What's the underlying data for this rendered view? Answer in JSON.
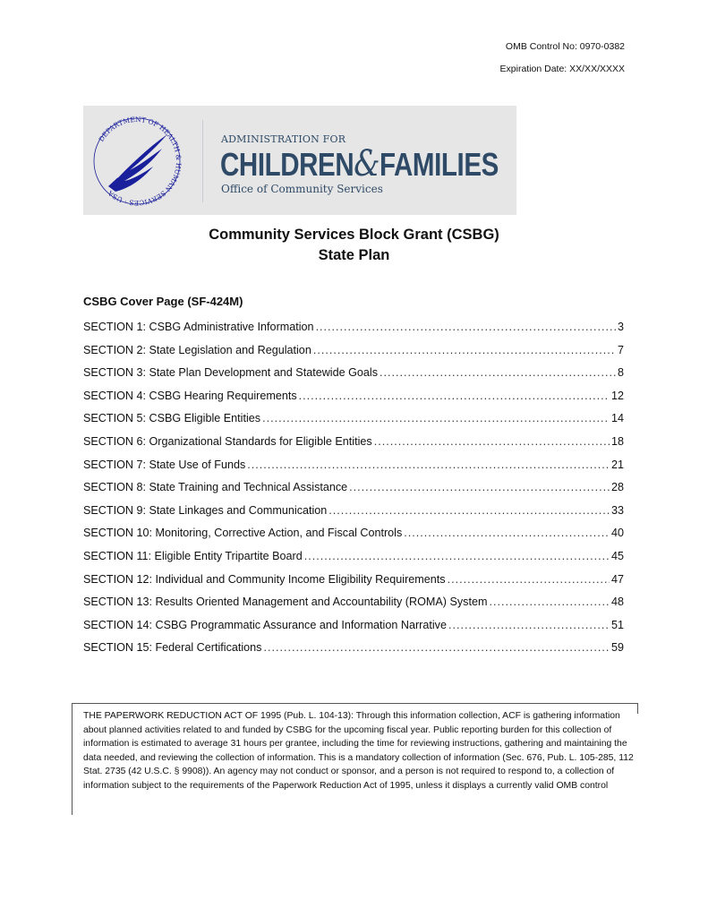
{
  "header": {
    "omb_control": "OMB Control No: 0970-0382",
    "expiration": "Expiration Date: XX/XX/XXXX"
  },
  "logo": {
    "seal_text": "DEPARTMENT OF HEALTH & HUMAN SERVICES · USA",
    "line1": "ADMINISTRATION FOR",
    "children": "CHILDREN",
    "amp": "&",
    "families": "FAMILIES",
    "line3": "Office of Community Services",
    "brand_color": "#2e4a66",
    "seal_color": "#1a1f9c"
  },
  "title": {
    "line1": "Community Services Block Grant (CSBG)",
    "line2": "State Plan"
  },
  "cover_page": "CSBG Cover Page (SF-424M)",
  "toc": [
    {
      "label": "SECTION 1: CSBG Administrative Information",
      "page": "3"
    },
    {
      "label": "SECTION 2: State Legislation and Regulation",
      "page": "7"
    },
    {
      "label": "SECTION 3: State Plan Development and Statewide Goals",
      "page": "8"
    },
    {
      "label": "SECTION 4: CSBG Hearing Requirements",
      "page": "12"
    },
    {
      "label": "SECTION 5: CSBG Eligible Entities",
      "page": "14"
    },
    {
      "label": "SECTION 6: Organizational Standards for Eligible Entities",
      "page": "18"
    },
    {
      "label": "SECTION 7: State Use of Funds",
      "page": "21"
    },
    {
      "label": "SECTION 8: State Training and Technical Assistance",
      "page": "28"
    },
    {
      "label": "SECTION 9: State Linkages and Communication",
      "page": "33"
    },
    {
      "label": "SECTION 10: Monitoring, Corrective Action, and Fiscal Controls",
      "page": "40"
    },
    {
      "label": "SECTION 11: Eligible Entity Tripartite Board",
      "page": "45"
    },
    {
      "label": "SECTION 12: Individual and Community Income Eligibility Requirements",
      "page": "47"
    },
    {
      "label": "SECTION 13: Results Oriented Management and Accountability (ROMA) System",
      "page": "48"
    },
    {
      "label": "SECTION 14: CSBG Programmatic Assurance and Information Narrative",
      "page": "51"
    },
    {
      "label": "SECTION 15: Federal Certifications",
      "page": "59"
    }
  ],
  "paperwork_notice": "THE PAPERWORK REDUCTION ACT OF 1995 (Pub. L. 104-13): Through this information collection, ACF is gathering information about planned activities related to and funded by CSBG for the upcoming fiscal year. Public reporting burden for this collection of information is estimated to average 31 hours per grantee, including the time for reviewing instructions, gathering and maintaining the data needed, and reviewing the collection of information. This is a mandatory collection of information (Sec. 676, Pub. L. 105-285, 112 Stat. 2735 (42 U.S.C. § 9908)). An agency may not conduct or sponsor, and a person is not required to respond to, a collection of information subject to the requirements of the Paperwork Reduction Act of 1995, unless it displays a currently valid OMB control"
}
